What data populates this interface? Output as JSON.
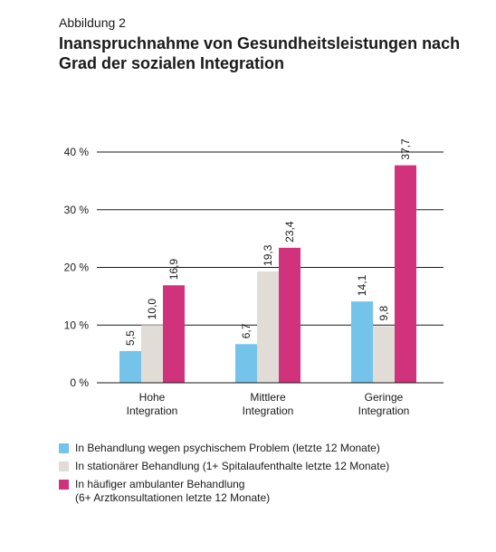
{
  "figure_label": "Abbildung 2",
  "title": "Inanspruchnahme von Gesundheitsleistungen nach Grad der sozialen Integration",
  "colors": {
    "psych": "#74c3ea",
    "stationaer": "#e2dcd6",
    "ambulant": "#d0327c"
  },
  "chart_data": {
    "type": "bar",
    "categories": [
      "Hohe\nIntegration",
      "Mittlere\nIntegration",
      "Geringe\nIntegration"
    ],
    "series": [
      {
        "name": "In Behandlung wegen psychischem Problem (letzte 12 Monate)",
        "values": [
          5.5,
          6.7,
          14.1
        ],
        "labels": [
          "5,5",
          "6,7",
          "14,1"
        ]
      },
      {
        "name": "In stationärer Behandlung (1+ Spitalaufenthalte letzte 12 Monate)",
        "values": [
          10.0,
          19.3,
          9.8
        ],
        "labels": [
          "10,0",
          "19,3",
          "9,8"
        ]
      },
      {
        "name": "In häufiger ambulanter Behandlung\n(6+ Arztkonsultationen letzte 12 Monate)",
        "values": [
          16.9,
          23.4,
          37.7
        ],
        "labels": [
          "16,9",
          "23,4",
          "37,7"
        ]
      }
    ],
    "yticks": [
      "0 %",
      "10 %",
      "20 %",
      "30 %",
      "40 %"
    ],
    "ylim": [
      0,
      40
    ],
    "grid": true,
    "legend_position": "bottom"
  }
}
